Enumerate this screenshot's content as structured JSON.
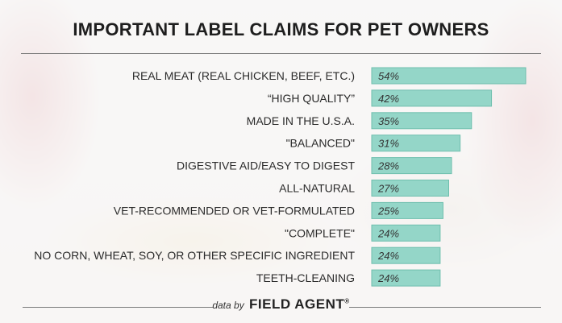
{
  "chart_data": {
    "type": "bar",
    "title": "IMPORTANT LABEL CLAIMS FOR PET OWNERS",
    "orientation": "horizontal",
    "categories": [
      "REAL MEAT (REAL CHICKEN, BEEF, ETC.)",
      "“HIGH QUALITY”",
      "MADE IN THE U.S.A.",
      "\"BALANCED\"",
      "DIGESTIVE AID/EASY TO DIGEST",
      "ALL-NATURAL",
      "VET-RECOMMENDED OR VET-FORMULATED",
      "\"COMPLETE\"",
      "NO CORN, WHEAT, SOY, OR OTHER SPECIFIC INGREDIENT",
      "TEETH-CLEANING"
    ],
    "values": [
      54,
      42,
      35,
      31,
      28,
      27,
      25,
      24,
      24,
      24
    ],
    "value_labels": [
      "54%",
      "42%",
      "35%",
      "31%",
      "28%",
      "27%",
      "25%",
      "24%",
      "24%",
      "24%"
    ],
    "xlim": [
      0,
      54
    ],
    "grid": false,
    "bar_color": "#94d6c8",
    "bar_border_color": "#6fbfae"
  },
  "footer": {
    "prefix": "data by",
    "brand": "FIELD AGENT",
    "registered": "®"
  }
}
